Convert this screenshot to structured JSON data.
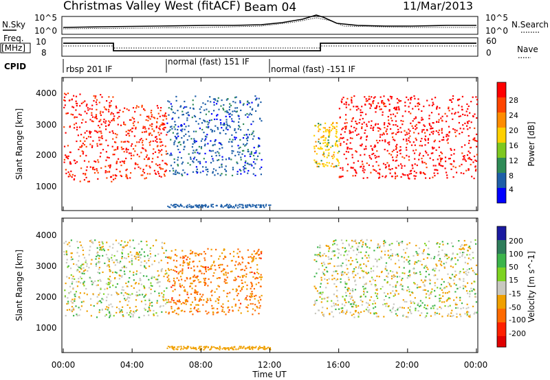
{
  "header": {
    "title": "Christmas Valley West (fitACF)",
    "beam": "Beam 04",
    "date": "11/Mar/2013"
  },
  "summary": {
    "nsky_label": "N.Sky",
    "nsearch_label": "N.Search",
    "left_ticks": [
      "10^5",
      "10^0"
    ],
    "right_ticks": [
      "10^5",
      "10^0"
    ],
    "freq_label": "Freq.",
    "freq_unit": "[MHz]",
    "freq_ticks": [
      "10",
      "8"
    ],
    "nave_ticks": [
      "60",
      "0"
    ],
    "nave_label": "Nave",
    "cpid_label": "CPID",
    "cpid_segments": [
      {
        "label": "rbsp 201 IF",
        "start": 0.0,
        "end": 6.0
      },
      {
        "label": "normal (fast) 151 IF",
        "start": 6.0,
        "end": 12.0
      },
      {
        "label": "normal (fast) -151 IF",
        "start": 12.0,
        "end": 24.0
      }
    ]
  },
  "chart_data": [
    {
      "type": "heatmap",
      "title": "",
      "xlabel": "Time UT",
      "ylabel": "Slant Range [km]",
      "xlim": [
        0,
        24
      ],
      "ylim": [
        0,
        4500
      ],
      "x_ticks": [
        "00:00",
        "04:00",
        "08:00",
        "12:00",
        "16:00",
        "20:00",
        "00:00"
      ],
      "y_ticks": [
        "1000",
        "2000",
        "3000",
        "4000"
      ],
      "colorbar": {
        "label": "Power [dB]",
        "ticks": [
          "28",
          "24",
          "20",
          "16",
          "12",
          "8",
          "4"
        ],
        "colors": [
          "#ff0000",
          "#ff4500",
          "#ff8c00",
          "#ffd000",
          "#7ec820",
          "#2e8b57",
          "#3cb371",
          "#1e5fa8",
          "#0000ff"
        ]
      },
      "features": [
        {
          "start_ut": 0.0,
          "end_ut": 3.0,
          "range_km": [
            1000,
            4000
          ],
          "value_db": 27
        },
        {
          "start_ut": 3.0,
          "end_ut": 6.0,
          "range_km": [
            1100,
            3600
          ],
          "value_db": 26
        },
        {
          "start_ut": 6.0,
          "end_ut": 11.5,
          "range_km": [
            1200,
            3900
          ],
          "value_db": 8
        },
        {
          "start_ut": 14.5,
          "end_ut": 16.0,
          "range_km": [
            1500,
            3000
          ],
          "value_db": 16
        },
        {
          "start_ut": 16.0,
          "end_ut": 24.0,
          "range_km": [
            1100,
            3900
          ],
          "value_db": 28
        }
      ]
    },
    {
      "type": "heatmap",
      "title": "",
      "xlabel": "Time UT",
      "ylabel": "Slant Range [km]",
      "xlim": [
        0,
        24
      ],
      "ylim": [
        0,
        4500
      ],
      "x_ticks": [
        "00:00",
        "04:00",
        "08:00",
        "12:00",
        "16:00",
        "20:00",
        "00:00"
      ],
      "y_ticks": [
        "1000",
        "2000",
        "3000",
        "4000"
      ],
      "colorbar": {
        "label": "Velocity [m s^-1]",
        "ticks": [
          "200",
          "100",
          "50",
          "15",
          "-15",
          "-50",
          "-100",
          "-200"
        ],
        "colors": [
          "#1a1aa0",
          "#2e7d5b",
          "#3cb44b",
          "#7ed321",
          "#c8c8c0",
          "#f0a000",
          "#ff6a00",
          "#ff2000",
          "#e00000"
        ]
      },
      "features": [
        {
          "start_ut": 0.0,
          "end_ut": 6.0,
          "range_km": [
            1200,
            3800
          ],
          "value_ms": 0
        },
        {
          "start_ut": 6.0,
          "end_ut": 11.5,
          "range_km": [
            1300,
            3500
          ],
          "value_ms": -60
        },
        {
          "start_ut": 14.5,
          "end_ut": 24.0,
          "range_km": [
            1200,
            3800
          ],
          "value_ms": 0
        }
      ]
    }
  ]
}
